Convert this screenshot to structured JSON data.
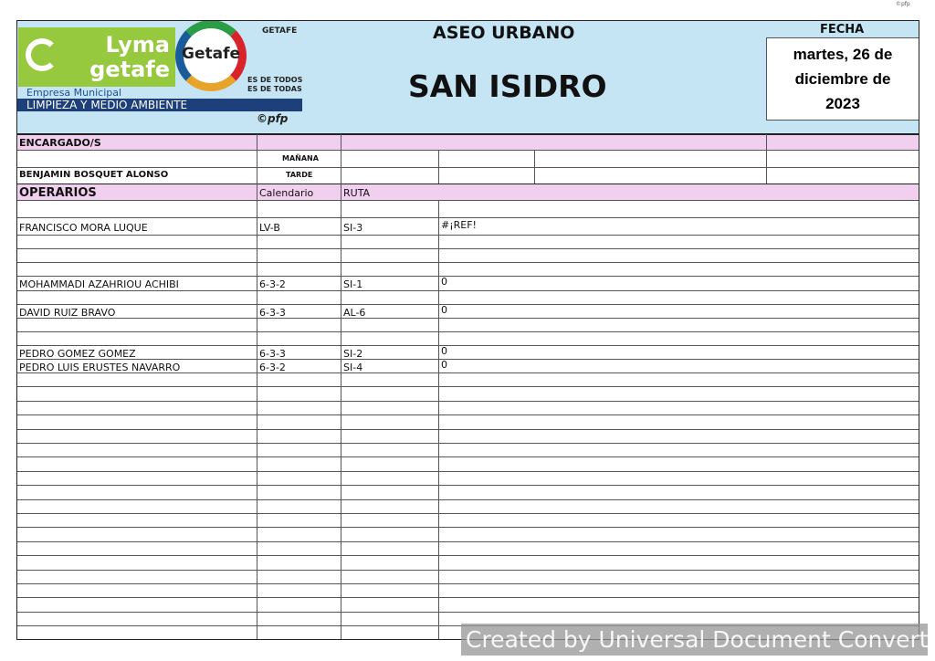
{
  "corner_mark": "©pfp",
  "logo": {
    "brand": "Lyma getafe",
    "company_line1": "Empresa Municipal",
    "company_line2": "LIMPIEZA Y MEDIO AMBIENTE",
    "getafe": "Getafe",
    "ayuntamiento": "GETAFE",
    "slogan1": "ES DE TODOS",
    "slogan2": "ES DE TODAS",
    "copyright": "©pfp"
  },
  "header": {
    "section": "ASEO URBANO",
    "title": "SAN ISIDRO",
    "date_label": "FECHA",
    "date_value": "martes, 26 de diciembre de 2023"
  },
  "encargados": {
    "label": "ENCARGADO/S",
    "shift_morning": "MAÑANA",
    "shift_afternoon": "TARDE",
    "morning_name": "",
    "afternoon_name": "BENJAMIN BOSQUET ALONSO"
  },
  "operarios": {
    "label": "OPERARIOS",
    "col_calendar": "Calendario",
    "col_route": "RUTA",
    "rows": [
      {
        "name": "",
        "calendar": "",
        "route": "",
        "extra": ""
      },
      {
        "name": "FRANCISCO MORA LUQUE",
        "calendar": "LV-B",
        "route": "SI-3",
        "extra": "#¡REF!"
      },
      {
        "name": "",
        "calendar": "",
        "route": "",
        "extra": ""
      },
      {
        "name": "",
        "calendar": "",
        "route": "",
        "extra": ""
      },
      {
        "name": "",
        "calendar": "",
        "route": "",
        "extra": ""
      },
      {
        "name": "MOHAMMADI AZAHRIOU ACHIBI",
        "calendar": "6-3-2",
        "route": "SI-1",
        "extra": "0"
      },
      {
        "name": "",
        "calendar": "",
        "route": "",
        "extra": ""
      },
      {
        "name": "DAVID RUIZ BRAVO",
        "calendar": "6-3-3",
        "route": "AL-6",
        "extra": "0"
      },
      {
        "name": "",
        "calendar": "",
        "route": "",
        "extra": ""
      },
      {
        "name": "",
        "calendar": "",
        "route": "",
        "extra": ""
      },
      {
        "name": "PEDRO GOMEZ GOMEZ",
        "calendar": "6-3-3",
        "route": "SI-2",
        "extra": "0"
      },
      {
        "name": "PEDRO LUIS ERUSTES NAVARRO",
        "calendar": "6-3-2",
        "route": "SI-4",
        "extra": "0"
      }
    ]
  },
  "watermark": "Created by Universal Document Converter"
}
